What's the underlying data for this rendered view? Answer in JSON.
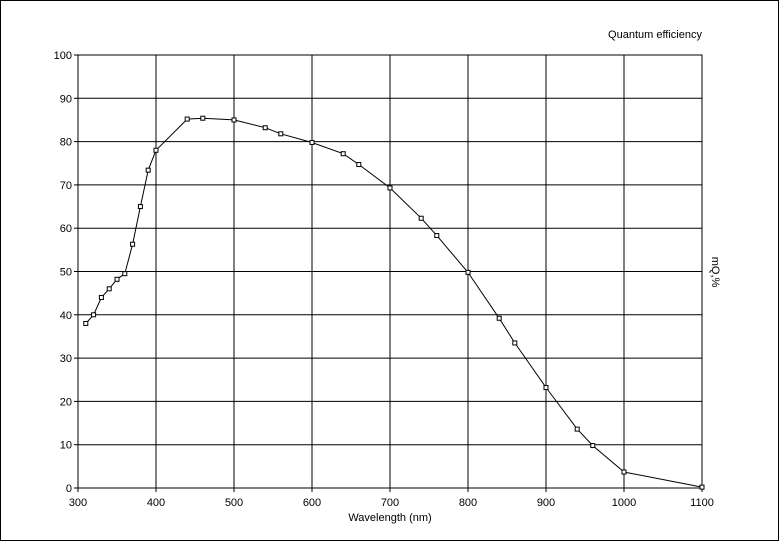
{
  "chart_data": {
    "type": "line",
    "title": "Quantum efficiency",
    "xlabel": "Wavelength (nm)",
    "ylabel": "mQ,%",
    "xlim": [
      300,
      1100
    ],
    "ylim": [
      0,
      100
    ],
    "x_ticks": [
      300,
      400,
      500,
      600,
      700,
      800,
      900,
      1000,
      1100
    ],
    "y_ticks": [
      0,
      10,
      20,
      30,
      40,
      50,
      60,
      70,
      80,
      90,
      100
    ],
    "grid": true,
    "marker": "square",
    "line_color": "#000000",
    "series": [
      {
        "x": [
          310,
          320,
          330,
          340,
          350,
          360,
          370,
          380,
          390,
          400,
          440,
          460,
          500,
          540,
          560,
          600,
          640,
          660,
          700,
          740,
          760,
          800,
          840,
          860,
          900,
          940,
          960,
          1000,
          1100
        ],
        "y": [
          38,
          40,
          44,
          46,
          48.2,
          49.5,
          56.3,
          65,
          73.4,
          78,
          85.2,
          85.4,
          85,
          83.2,
          81.8,
          79.8,
          77.2,
          74.7,
          69.3,
          62.3,
          58.3,
          49.8,
          39.2,
          33.5,
          23.2,
          13.6,
          9.8,
          3.7,
          0.2
        ]
      }
    ]
  }
}
